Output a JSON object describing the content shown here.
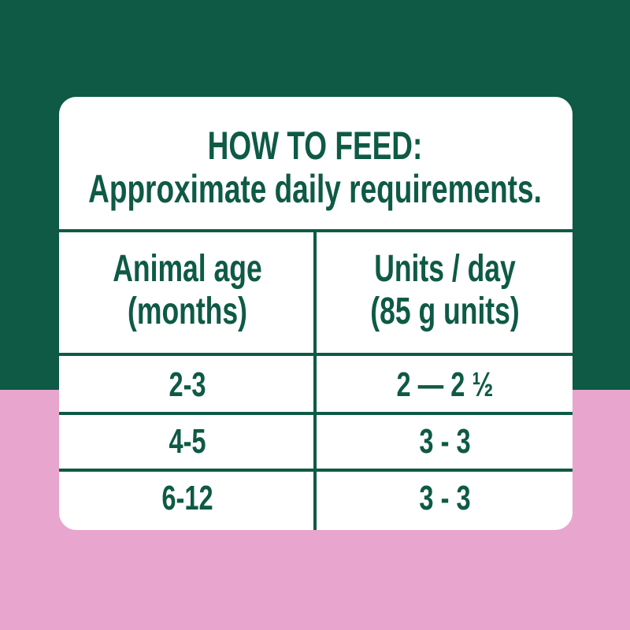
{
  "header": {
    "title": "HOW TO FEED:",
    "subtitle": "Approximate daily requirements."
  },
  "table": {
    "columns": [
      [
        "Animal age",
        "(months)"
      ],
      [
        "Units / day",
        "(85 g units)"
      ]
    ],
    "rows": [
      [
        "2-3",
        "2 — 2 ½"
      ],
      [
        "4-5",
        "3 - 3"
      ],
      [
        "6-12",
        "3 - 3"
      ]
    ]
  }
}
